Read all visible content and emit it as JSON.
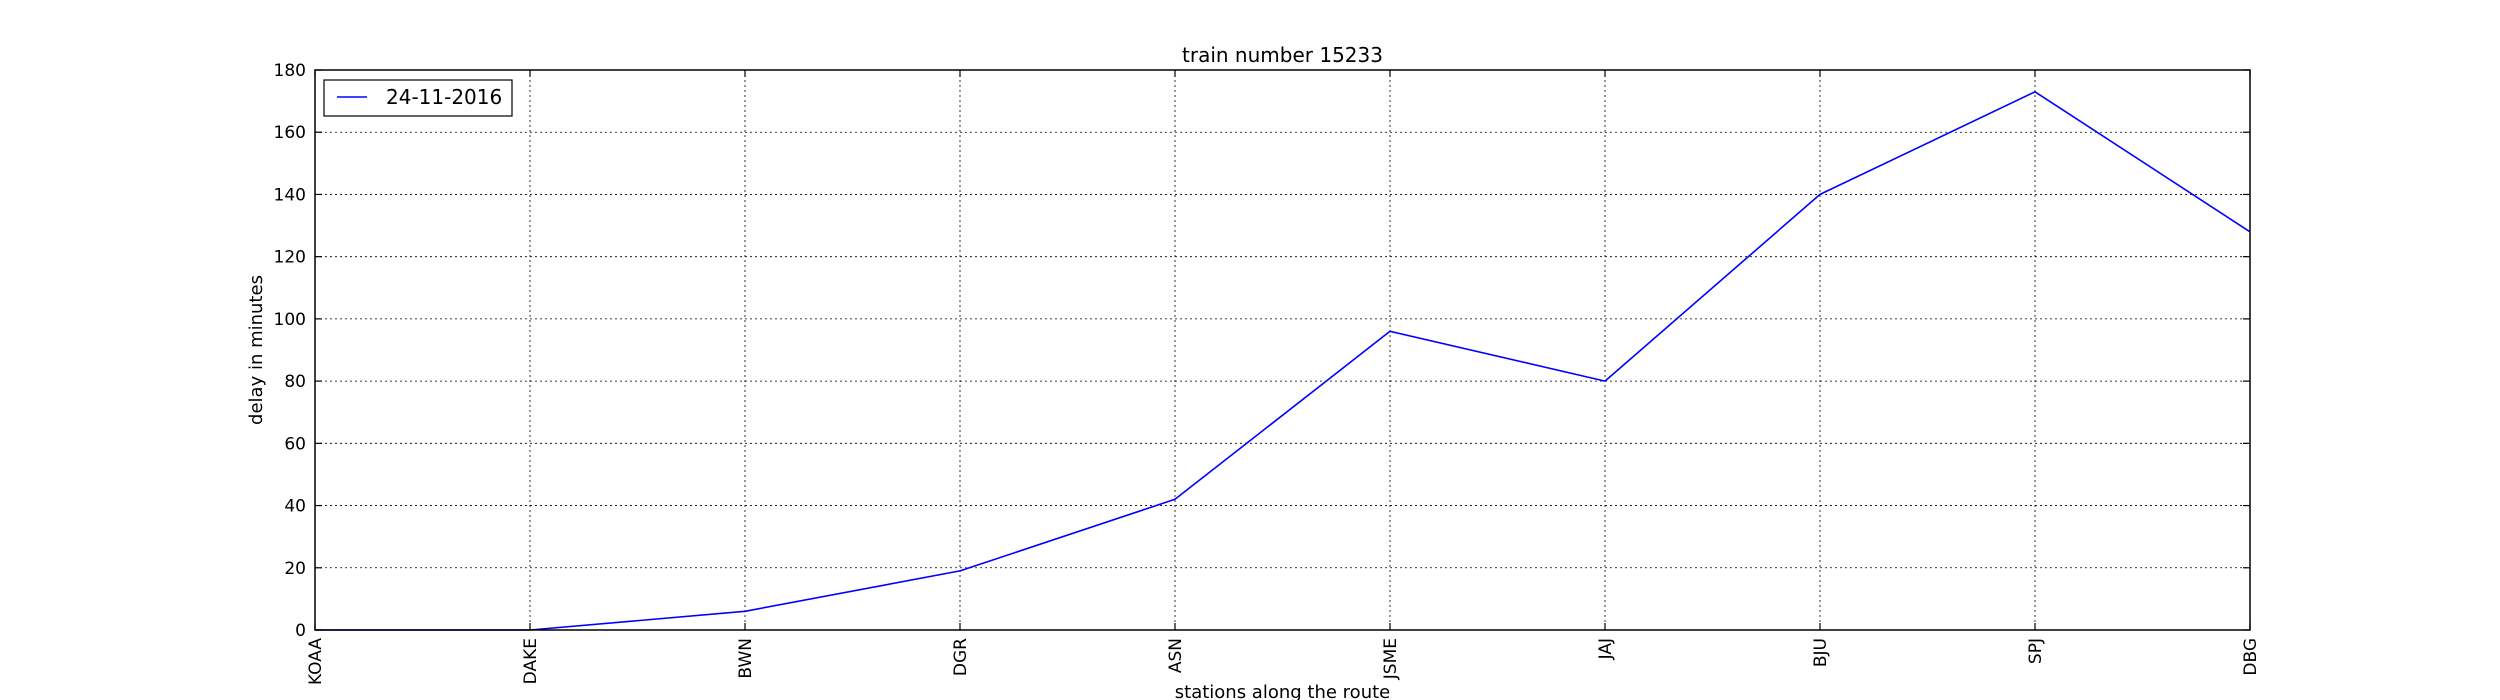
{
  "chart_data": {
    "type": "line",
    "title": "train number 15233",
    "xlabel": "stations along the route",
    "ylabel": "delay in minutes",
    "categories": [
      "KOAA",
      "DAKE",
      "BWN",
      "DGR",
      "ASN",
      "JSME",
      "JAJ",
      "BJU",
      "SPJ",
      "DBG"
    ],
    "series": [
      {
        "name": "24-11-2016",
        "color": "#0000ff",
        "values": [
          0,
          0,
          6,
          19,
          42,
          96,
          80,
          140,
          173,
          128
        ]
      }
    ],
    "ylim": [
      0,
      180
    ],
    "yticks": [
      0,
      20,
      40,
      60,
      80,
      100,
      120,
      140,
      160,
      180
    ],
    "grid": true,
    "legend_position": "top-left"
  }
}
